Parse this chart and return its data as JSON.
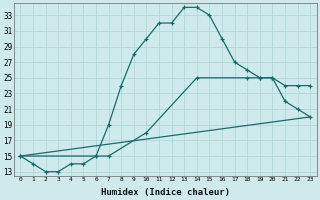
{
  "xlabel": "Humidex (Indice chaleur)",
  "bg_color": "#ceeaed",
  "line_color": "#1a6b6b",
  "grid_color": "#b0d8dc",
  "xlim": [
    -0.5,
    23.5
  ],
  "ylim": [
    12.5,
    34.5
  ],
  "xticks": [
    0,
    1,
    2,
    3,
    4,
    5,
    6,
    7,
    8,
    9,
    10,
    11,
    12,
    13,
    14,
    15,
    16,
    17,
    18,
    19,
    20,
    21,
    22,
    23
  ],
  "yticks": [
    13,
    15,
    17,
    19,
    21,
    23,
    25,
    27,
    29,
    31,
    33
  ],
  "line1_x": [
    0,
    1,
    2,
    3,
    4,
    5,
    6,
    7,
    8,
    9,
    10,
    11,
    12,
    13,
    14,
    15,
    16,
    17,
    18,
    19,
    20,
    21,
    22,
    23
  ],
  "line1_y": [
    15,
    14,
    13,
    13,
    14,
    14,
    15,
    19,
    24,
    28,
    30,
    32,
    32,
    34,
    34,
    33,
    30,
    27,
    26,
    25,
    25,
    22,
    21,
    20
  ],
  "line2_x": [
    0,
    6,
    7,
    10,
    14,
    18,
    19,
    20,
    21,
    22,
    23
  ],
  "line2_y": [
    15,
    15,
    15,
    18,
    25,
    25,
    25,
    25,
    24,
    24,
    24
  ],
  "line3_x": [
    0,
    23
  ],
  "line3_y": [
    15,
    20
  ]
}
